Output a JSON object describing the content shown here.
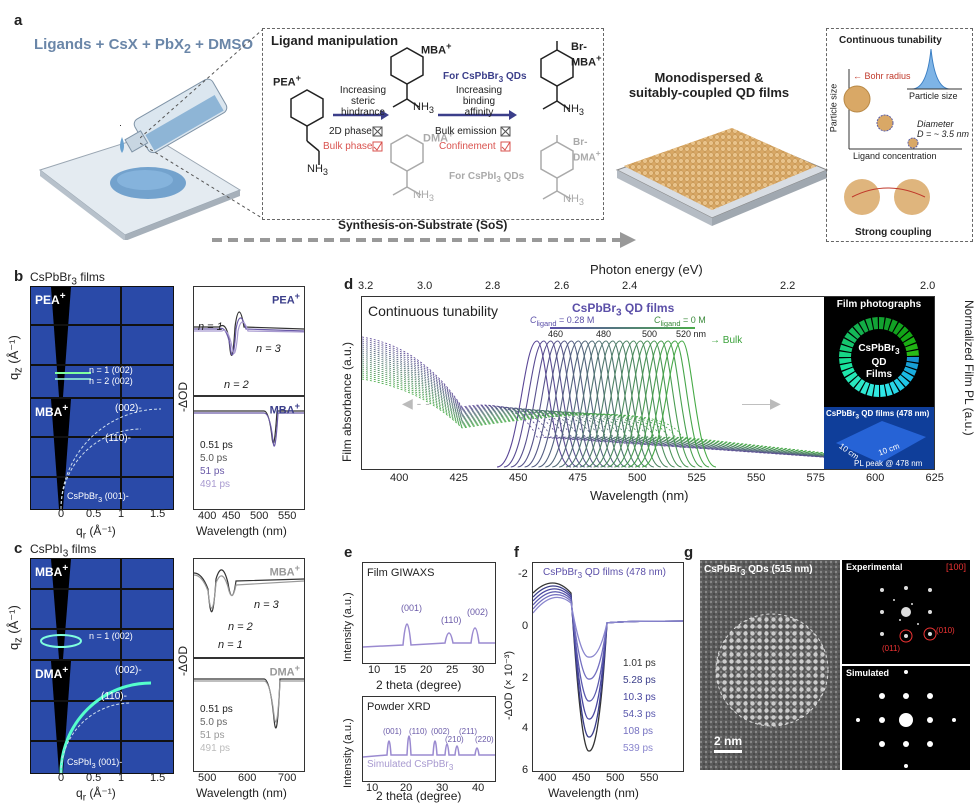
{
  "panel_a": {
    "label": "a",
    "recipe": "Ligands + CsX + PbX",
    "recipe_sub": "2",
    "recipe_tail": " + DMSO",
    "box_title": "Ligand manipulation",
    "pea": "PEA",
    "mba": "MBA",
    "dma": "DMA",
    "brmba": "Br-MBA",
    "brdma": "Br-DMA",
    "nh3": "NH",
    "plus": "+",
    "steric": "Increasing steric hindrance",
    "binding": "Increasing binding affinity",
    "phase2d": "2D phase",
    "bulkphase": "Bulk phase",
    "bulkemission": "Bulk emission",
    "confinement": "Confinement",
    "for_br": "For CsPbBr",
    "for_i": "For CsPbI",
    "qds": " QDs",
    "films_title1": "Monodispersed &",
    "films_title2": "suitably-coupled QD films",
    "sos": "Synthesis-on-Substrate (SoS)",
    "cont_tun": "Continuous tunability",
    "bohr": "Bohr radius",
    "particle_size": "Particle size",
    "particle_size_y": "Particle size",
    "diameter": "Diameter",
    "diameter_val": "D = ~ 3.5 nm",
    "ligand_conc": "Ligand concentration",
    "strong": "Strong coupling"
  },
  "panel_b": {
    "label": "b",
    "title": "CsPbBr",
    "title_tail": " films",
    "pea": "PEA",
    "mba": "MBA",
    "n1_002": "n = 1 (002)",
    "n2_002": "n = 2 (002)",
    "p002": "(002)-",
    "p110": "(110)-",
    "p001": "CsPbBr",
    "p001_tail": " (001)-",
    "qz": "q",
    "qr": "q",
    "unit": " (Å⁻¹)",
    "neg_od": "-ΔOD",
    "wavelength": "Wavelength (nm)",
    "n1": "n = 1",
    "n2": "n = 2",
    "n3": "n = 3",
    "legend": [
      "0.51 ps",
      "5.0 ps",
      "51 ps",
      "491 ps"
    ],
    "xt": [
      "400",
      "450",
      "500",
      "550"
    ],
    "gx": [
      "0",
      "0.5",
      "1",
      "1.5"
    ],
    "gy": [
      "1.5",
      "1",
      "0.5",
      "0"
    ]
  },
  "panel_c": {
    "label": "c",
    "title": "CsPbI",
    "title_tail": " films",
    "mba": "MBA",
    "dma": "DMA",
    "n1_002": "n = 1 (002)",
    "p002": "(002)-",
    "p110": "(110)-",
    "p001": "CsPbI",
    "p001_tail": " (001)-",
    "n1": "n = 1",
    "n2": "n = 2",
    "n3": "n = 3",
    "legend": [
      "0.51 ps",
      "5.0 ps",
      "51 ps",
      "491 ps"
    ],
    "xt": [
      "500",
      "600",
      "700"
    ]
  },
  "panel_d": {
    "label": "d",
    "top_axis": "Photon energy (eV)",
    "top_ticks": [
      "3.2",
      "3.0",
      "2.8",
      "2.6",
      "2.4",
      "2.2",
      "2.0"
    ],
    "bottom_ticks": [
      "400",
      "425",
      "450",
      "475",
      "500",
      "525",
      "550",
      "575",
      "600",
      "625"
    ],
    "xlabel": "Wavelength (nm)",
    "ylabel_left": "Film absorbance (a.u.)",
    "ylabel_right": "Normalized Film PL (a.u.)",
    "cont": "Continuous tunability",
    "qd_title": "CsPbBr",
    "qd_tail": " QD films",
    "cmax": "= 0.28 M",
    "cmin": "= 0 M",
    "c_sym": "C",
    "c_sub": "ligand",
    "scale": [
      "460",
      "480",
      "500",
      "520 nm"
    ],
    "bulk": "Bulk",
    "photos": "Film photographs",
    "ring1": "CsPbBr",
    "ring2": "QD",
    "ring3": "Films",
    "photo2": "CsPbBr",
    "photo2_tail": " QD films (478 nm)",
    "ten1": "10 cm",
    "ten2": "10 cm",
    "pl_peak": "PL peak @ 478 nm"
  },
  "panel_e": {
    "label": "e",
    "giwaxs": "Film GIWAXS",
    "g_peaks": [
      "(001)",
      "(110)",
      "(002)"
    ],
    "xrd": "Powder XRD",
    "x_peaks": [
      "(001)",
      "(110)",
      "(002)",
      "(210)",
      "(211)",
      "(220)"
    ],
    "sim": "Simulated CsPbBr",
    "ylabel": "Intensity (a.u.)",
    "xlabel": "2 theta (degree)",
    "xt": [
      "10",
      "15",
      "20",
      "25",
      "30"
    ],
    "xt2": [
      "10",
      "20",
      "30",
      "40"
    ]
  },
  "panel_f": {
    "label": "f",
    "title": "CsPbBr",
    "title_tail": " QD films (478 nm)",
    "ylabel": "-ΔOD (× 10⁻³)",
    "xlabel": "Wavelength (nm)",
    "yt": [
      "-2",
      "0",
      "2",
      "4",
      "6"
    ],
    "xt": [
      "400",
      "450",
      "500",
      "550"
    ],
    "legend": [
      "1.01 ps",
      "5.28 ps",
      "10.3 ps",
      "54.3 ps",
      "108 ps",
      "539 ps"
    ]
  },
  "panel_g": {
    "label": "g",
    "title": "CsPbBr",
    "title_tail": " QDs (515 nm)",
    "scale": "2 nm",
    "exp": "Experimental",
    "zone": "[100]",
    "s010": "(010)",
    "s011": "(011)",
    "sim": "Simulated"
  }
}
